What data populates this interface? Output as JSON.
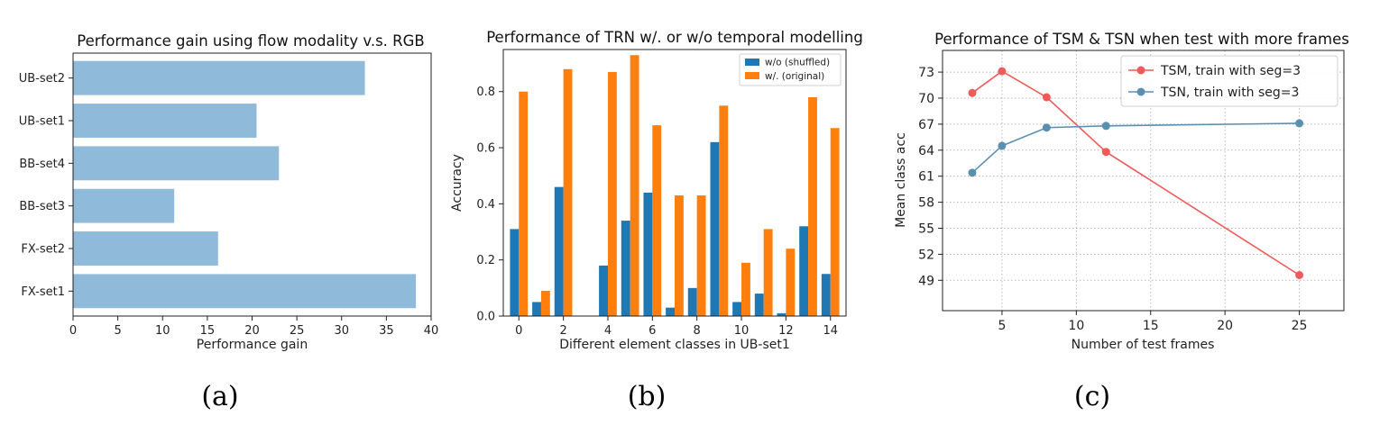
{
  "chart_data": [
    {
      "type": "bar",
      "orientation": "horizontal",
      "title": "Performance gain using flow modality v.s. RGB",
      "xlabel": "Performance gain",
      "ylabel": "",
      "categories": [
        "FX-set1",
        "FX-set2",
        "BB-set3",
        "BB-set4",
        "UB-set1",
        "UB-set2"
      ],
      "values": [
        38.3,
        16.2,
        11.3,
        23.0,
        20.5,
        32.6
      ],
      "xlim": [
        0,
        40
      ],
      "xticks": [
        "0",
        "5",
        "10",
        "15",
        "20",
        "25",
        "30",
        "35",
        "40"
      ],
      "grid": false,
      "color": "#8fbad9",
      "caption": "(a)"
    },
    {
      "type": "bar",
      "title": "Performance of TRN w/. or w/o temporal modelling",
      "xlabel": "Different element classes in UB-set1",
      "ylabel": "Accuracy",
      "x": [
        0,
        1,
        2,
        3,
        4,
        5,
        6,
        7,
        8,
        9,
        10,
        11,
        12,
        13,
        14
      ],
      "xticks": [
        "0",
        "2",
        "4",
        "6",
        "8",
        "10",
        "12",
        "14"
      ],
      "yticks": [
        "0.0",
        "0.2",
        "0.4",
        "0.6",
        "0.8"
      ],
      "ylim": [
        0,
        0.95
      ],
      "series": [
        {
          "name": "w/o (shuffled)",
          "color": "#1f77b4",
          "values": [
            0.31,
            0.05,
            0.46,
            0.0,
            0.18,
            0.34,
            0.44,
            0.03,
            0.1,
            0.62,
            0.05,
            0.08,
            0.01,
            0.32,
            0.15
          ]
        },
        {
          "name": "w/. (original)",
          "color": "#ff7f0e",
          "values": [
            0.8,
            0.09,
            0.88,
            0.0,
            0.87,
            0.93,
            0.68,
            0.43,
            0.43,
            0.75,
            0.19,
            0.31,
            0.24,
            0.78,
            0.67
          ]
        }
      ],
      "legend": "top-right",
      "grid": false,
      "caption": "(b)"
    },
    {
      "type": "line",
      "title": "Performance of TSM & TSN when test with more frames",
      "xlabel": "Number of test frames",
      "ylabel": "Mean class acc",
      "xlim": [
        1,
        28
      ],
      "ylim": [
        45.5,
        75.5
      ],
      "xticks": [
        "5",
        "10",
        "15",
        "20",
        "25"
      ],
      "yticks": [
        "49",
        "52",
        "55",
        "58",
        "61",
        "64",
        "67",
        "70",
        "73"
      ],
      "series": [
        {
          "name": "TSM, train with seg=3",
          "color": "#ef5a5a",
          "x": [
            3,
            5,
            8,
            12,
            25
          ],
          "y": [
            70.6,
            73.1,
            70.1,
            63.8,
            49.6
          ]
        },
        {
          "name": "TSN, train with seg=3",
          "color": "#5a8fb0",
          "x": [
            3,
            5,
            8,
            12,
            25
          ],
          "y": [
            61.4,
            64.5,
            66.6,
            66.8,
            67.1
          ]
        }
      ],
      "legend": "top-right",
      "grid": true,
      "caption": "(c)"
    }
  ]
}
